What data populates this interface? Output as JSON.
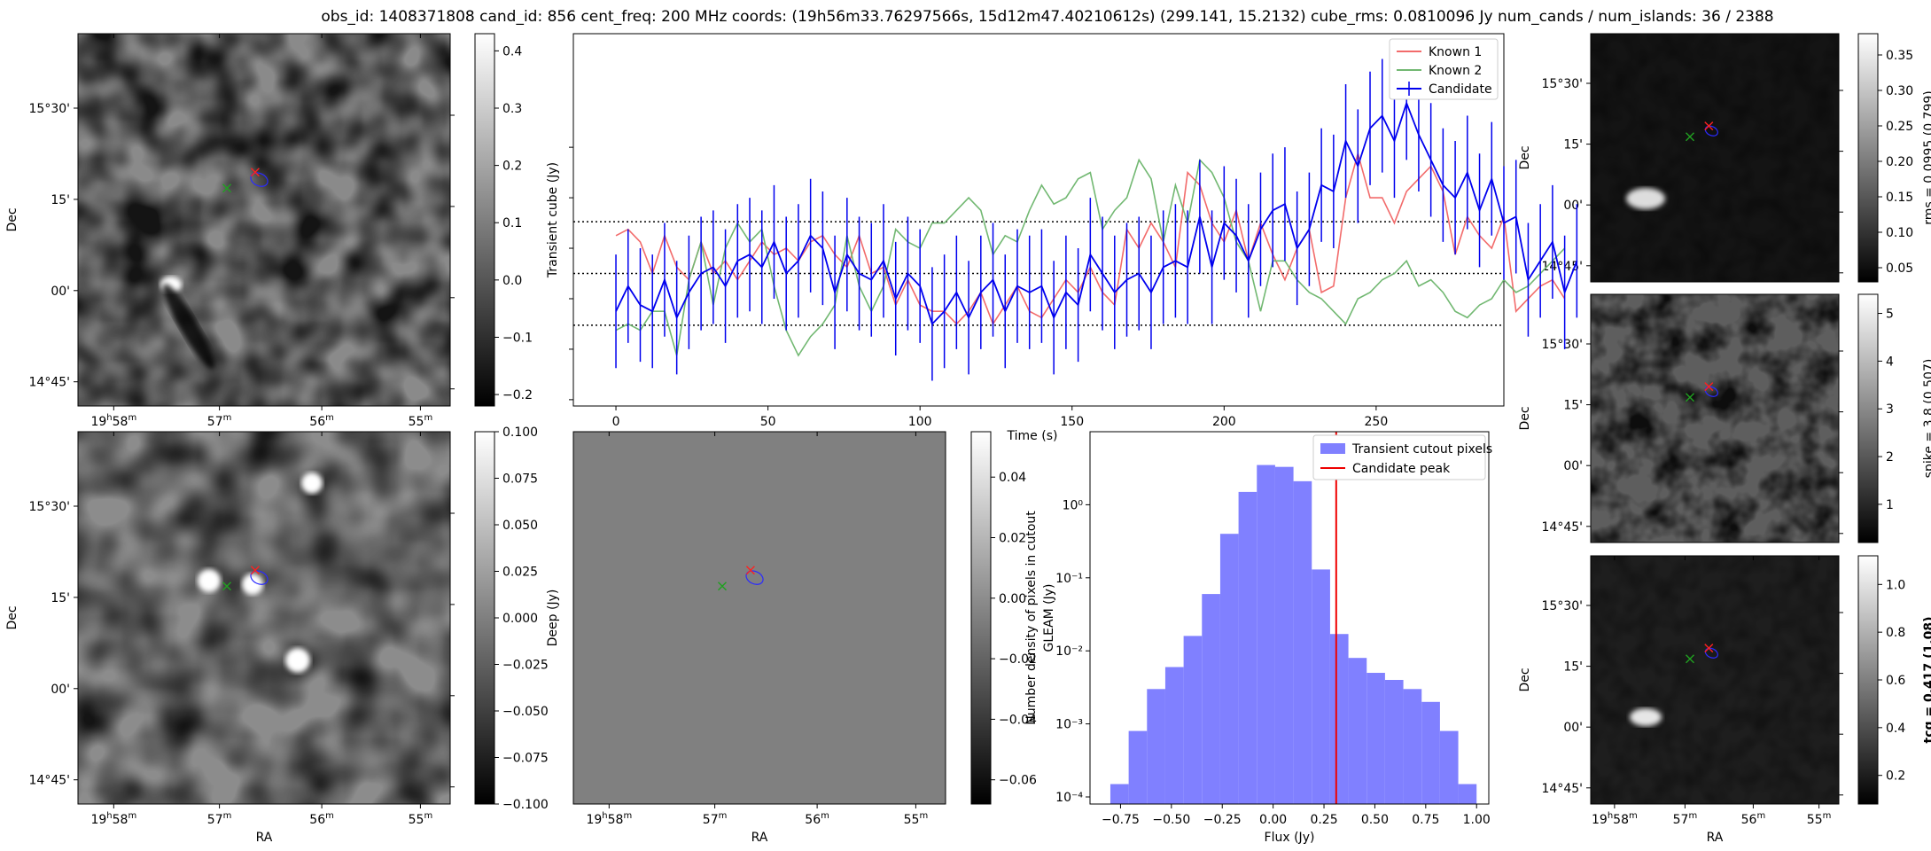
{
  "figure": {
    "title": "obs_id: 1408371808 cand_id: 856 cent_freq: 200 MHz coords: (19h56m33.76297566s, 15d12m47.40210612s) (299.141, 15.2132) cube_rms: 0.0810096 Jy num_cands / num_islands: 36 / 2388"
  },
  "chart_data": [
    {
      "id": "transient-image",
      "type": "heatmap",
      "xlabel": "RA",
      "ylabel": "Dec",
      "x_ticks": [
        "19h58m",
        "57m",
        "56m",
        "55m"
      ],
      "y_ticks": [
        "15°30'",
        "15'",
        "00'",
        "14°45'"
      ],
      "colorbar": {
        "label": "Transient cube (Jy)",
        "range": [
          -0.22,
          0.43
        ],
        "ticks": [
          "0.4",
          "0.3",
          "0.2",
          "0.1",
          "0.0",
          "−0.1",
          "−0.2"
        ],
        "tick_values": [
          0.4,
          0.3,
          0.2,
          0.1,
          0.0,
          -0.1,
          -0.2
        ]
      },
      "markers": [
        "red-x",
        "green-x",
        "blue-ellipse"
      ]
    },
    {
      "id": "lightcurve",
      "type": "line",
      "xlabel": "Time (s)",
      "ylabel": "",
      "xlim": [
        -14,
        292
      ],
      "ylim": [
        -0.21,
        0.38
      ],
      "x_ticks": [
        0,
        50,
        100,
        150,
        200,
        250
      ],
      "x_tick_labels": [
        "0",
        "50",
        "100",
        "150",
        "200",
        "250"
      ],
      "hlines": [
        0.082,
        0.0,
        -0.082
      ],
      "legend_position": "top-right",
      "series": [
        {
          "name": "Known 1",
          "color": "#f26b6b",
          "t0": 0,
          "dt": 4,
          "values": [
            0.06,
            0.07,
            0.05,
            0.0,
            0.06,
            0.01,
            -0.01,
            0.05,
            0.0,
            0.02,
            -0.01,
            0.02,
            0.05,
            0.03,
            0.04,
            0.02,
            0.05,
            0.06,
            0.03,
            0.01,
            0.06,
            0.0,
            0.01,
            -0.05,
            -0.01,
            -0.05,
            -0.06,
            -0.06,
            -0.08,
            -0.06,
            -0.03,
            -0.08,
            -0.05,
            -0.02,
            -0.06,
            -0.07,
            -0.04,
            -0.01,
            -0.03,
            0.01,
            -0.03,
            -0.05,
            0.07,
            0.04,
            0.08,
            0.05,
            0.01,
            0.16,
            0.14,
            0.08,
            0.05,
            0.1,
            0.02,
            0.08,
            0.03,
            -0.01,
            0.04,
            0.07,
            -0.03,
            -0.02,
            0.12,
            0.19,
            0.12,
            0.12,
            0.08,
            0.13,
            0.15,
            0.17,
            0.13,
            0.03,
            0.09,
            0.06,
            0.04,
            0.09,
            -0.06,
            -0.04,
            -0.02,
            -0.01,
            -0.04
          ]
        },
        {
          "name": "Known 2",
          "color": "#72b872",
          "t0": 0,
          "dt": 4,
          "values": [
            -0.09,
            -0.08,
            -0.09,
            -0.06,
            -0.06,
            -0.13,
            -0.01,
            0.05,
            -0.05,
            0.04,
            0.08,
            0.05,
            0.07,
            -0.02,
            -0.09,
            -0.13,
            -0.1,
            -0.08,
            -0.05,
            0.06,
            -0.02,
            -0.06,
            -0.02,
            0.07,
            0.05,
            0.04,
            0.08,
            0.08,
            0.1,
            0.12,
            0.1,
            0.03,
            0.06,
            0.05,
            0.1,
            0.14,
            0.11,
            0.12,
            0.15,
            0.16,
            0.07,
            0.1,
            0.12,
            0.18,
            0.15,
            0.05,
            0.14,
            0.08,
            0.18,
            0.16,
            0.12,
            0.05,
            0.02,
            -0.06,
            0.02,
            0.02,
            -0.01,
            -0.03,
            -0.04,
            -0.06,
            -0.08,
            -0.04,
            -0.03,
            -0.01,
            0.0,
            0.02,
            -0.02,
            -0.01,
            -0.03,
            -0.06,
            -0.07,
            -0.05,
            -0.04,
            -0.01,
            -0.03,
            -0.02,
            0.0,
            0.02,
            0.04
          ]
        },
        {
          "name": "Candidate",
          "color": "#0000ee",
          "t0": 0,
          "dt": 4,
          "errors": 0.09,
          "values": [
            -0.06,
            -0.02,
            -0.05,
            -0.06,
            -0.01,
            -0.07,
            -0.03,
            0.0,
            0.01,
            -0.02,
            0.02,
            0.03,
            0.01,
            0.05,
            0.0,
            0.02,
            0.06,
            0.04,
            -0.03,
            0.03,
            0.0,
            -0.01,
            0.02,
            -0.04,
            0.0,
            -0.02,
            -0.08,
            -0.06,
            -0.03,
            -0.07,
            -0.03,
            -0.01,
            -0.06,
            -0.02,
            -0.03,
            -0.02,
            -0.07,
            -0.03,
            -0.05,
            0.03,
            0.0,
            -0.03,
            -0.01,
            0.0,
            -0.03,
            0.01,
            0.02,
            0.01,
            0.09,
            0.01,
            0.08,
            0.06,
            0.02,
            0.07,
            0.1,
            0.11,
            0.04,
            0.07,
            0.14,
            0.13,
            0.21,
            0.17,
            0.23,
            0.25,
            0.21,
            0.27,
            0.22,
            0.18,
            0.14,
            0.12,
            0.16,
            0.1,
            0.15,
            0.08,
            0.09,
            -0.01,
            0.02,
            0.05,
            -0.03,
            0.02
          ]
        }
      ]
    },
    {
      "id": "deep-image",
      "type": "heatmap",
      "xlabel": "RA",
      "ylabel": "Dec",
      "x_ticks": [
        "19h58m",
        "57m",
        "56m",
        "55m"
      ],
      "y_ticks": [
        "15°30'",
        "15'",
        "00'",
        "14°45'"
      ],
      "colorbar": {
        "label": "Deep (Jy)",
        "range": [
          -0.1,
          0.1
        ],
        "ticks": [
          "0.100",
          "0.075",
          "0.050",
          "0.025",
          "0.000",
          "−0.025",
          "−0.050",
          "−0.075",
          "−0.100"
        ],
        "tick_values": [
          0.1,
          0.075,
          0.05,
          0.025,
          0.0,
          -0.025,
          -0.05,
          -0.075,
          -0.1
        ]
      },
      "markers": [
        "red-x",
        "green-x",
        "blue-ellipse"
      ]
    },
    {
      "id": "gleam-image",
      "type": "heatmap",
      "xlabel": "RA",
      "ylabel": "",
      "x_ticks": [
        "19h58m",
        "57m",
        "56m",
        "55m"
      ],
      "y_ticks": [],
      "colorbar": {
        "label": "GLEAM (Jy)",
        "range": [
          -0.068,
          0.055
        ],
        "ticks": [
          "0.04",
          "0.02",
          "0.00",
          "−0.02",
          "−0.04",
          "−0.06"
        ],
        "tick_values": [
          0.04,
          0.02,
          0.0,
          -0.02,
          -0.04,
          -0.06
        ]
      },
      "markers": [
        "red-x",
        "green-x",
        "blue-ellipse"
      ]
    },
    {
      "id": "histogram",
      "type": "bar",
      "xlabel": "Flux (Jy)",
      "ylabel": "Number density of pixels in cutout",
      "y_scale": "log",
      "ylim": [
        8e-05,
        10
      ],
      "xlim": [
        -0.9,
        1.06
      ],
      "x_ticks": [
        -0.75,
        -0.5,
        -0.25,
        0.0,
        0.25,
        0.5,
        0.75,
        1.0
      ],
      "x_tick_labels": [
        "−0.75",
        "−0.50",
        "−0.25",
        "0.00",
        "0.25",
        "0.50",
        "0.75",
        "1.00"
      ],
      "y_tick_values": [
        0.0001,
        0.001,
        0.01,
        0.1,
        1
      ],
      "y_tick_labels": [
        "10⁻⁴",
        "10⁻³",
        "10⁻²",
        "10⁻¹",
        "10⁰"
      ],
      "bin_edges": [
        -0.8,
        -0.71,
        -0.62,
        -0.53,
        -0.44,
        -0.35,
        -0.26,
        -0.17,
        -0.08,
        0.01,
        0.1,
        0.19,
        0.28,
        0.37,
        0.46,
        0.55,
        0.64,
        0.73,
        0.82,
        0.91,
        1.0
      ],
      "values": [
        0.00015,
        0.0008,
        0.003,
        0.006,
        0.016,
        0.06,
        0.4,
        1.5,
        3.5,
        3.3,
        2.1,
        0.13,
        0.017,
        0.008,
        0.005,
        0.004,
        0.003,
        0.002,
        0.0008,
        0.00015
      ],
      "vline": 0.31,
      "legend_position": "top-right",
      "series": [
        {
          "name": "Transient cutout pixels",
          "color": "#8080ff"
        },
        {
          "name": "Candidate peak",
          "color": "#ee0000"
        }
      ]
    },
    {
      "id": "rms-image",
      "type": "heatmap",
      "ylabel": "Dec",
      "y_ticks": [
        "15°30'",
        "15'",
        "00'",
        "14°45'"
      ],
      "colorbar": {
        "label": "rms = 0.0995 (0.799)",
        "range": [
          0.03,
          0.38
        ],
        "ticks": [
          "0.35",
          "0.30",
          "0.25",
          "0.20",
          "0.15",
          "0.10",
          "0.05"
        ],
        "tick_values": [
          0.35,
          0.3,
          0.25,
          0.2,
          0.15,
          0.1,
          0.05
        ]
      },
      "markers": [
        "red-x",
        "green-x",
        "blue-ellipse"
      ]
    },
    {
      "id": "spike-image",
      "type": "heatmap",
      "ylabel": "Dec",
      "y_ticks": [
        "15°30'",
        "15'",
        "00'",
        "14°45'"
      ],
      "colorbar": {
        "label": "spike = 3.8 (0.507)",
        "range": [
          0.2,
          5.4
        ],
        "ticks": [
          "5",
          "4",
          "3",
          "2",
          "1"
        ],
        "tick_values": [
          5,
          4,
          3,
          2,
          1
        ]
      },
      "markers": [
        "red-x",
        "green-x",
        "blue-ellipse"
      ]
    },
    {
      "id": "tcg-image",
      "type": "heatmap",
      "xlabel": "RA",
      "ylabel": "Dec",
      "x_ticks": [
        "19h58m",
        "57m",
        "56m",
        "55m"
      ],
      "y_ticks": [
        "15°30'",
        "15'",
        "00'",
        "14°45'"
      ],
      "colorbar": {
        "label": "tcg = 0.417 (1.08)",
        "bold": true,
        "range": [
          0.08,
          1.12
        ],
        "ticks": [
          "1.0",
          "0.8",
          "0.6",
          "0.4",
          "0.2"
        ],
        "tick_values": [
          1.0,
          0.8,
          0.6,
          0.4,
          0.2
        ]
      },
      "markers": [
        "red-x",
        "green-x",
        "blue-ellipse"
      ]
    }
  ]
}
